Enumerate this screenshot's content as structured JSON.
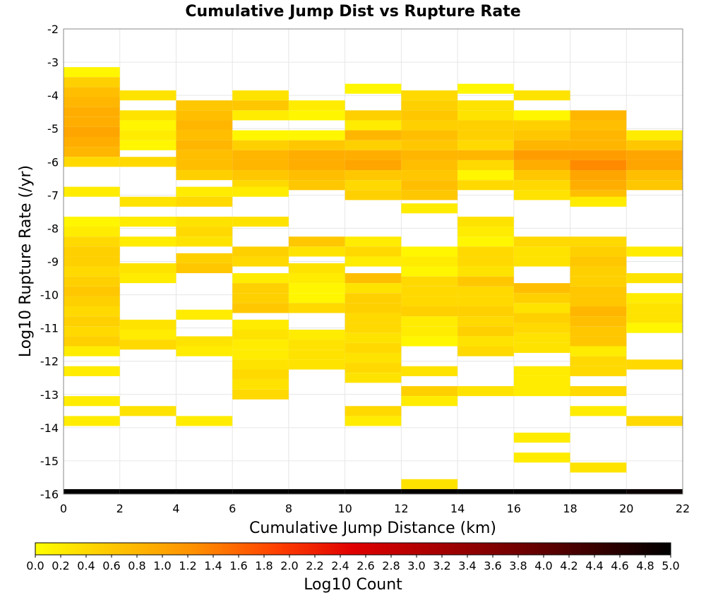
{
  "chart_data": {
    "type": "heatmap",
    "title": "Cumulative Jump Dist vs Rupture Rate",
    "xlabel": "Cumulative Jump Distance (km)",
    "ylabel": "Log10 Rupture Rate (/yr)",
    "xlim": [
      0,
      22
    ],
    "ylim": [
      -16,
      -2
    ],
    "x_ticks": [
      "0",
      "2",
      "4",
      "6",
      "8",
      "10",
      "12",
      "14",
      "16",
      "18",
      "20",
      "22"
    ],
    "y_ticks": [
      "-2",
      "-3",
      "-4",
      "-5",
      "-6",
      "-7",
      "-8",
      "-9",
      "-10",
      "-11",
      "-12",
      "-13",
      "-14",
      "-15",
      "-16"
    ],
    "grid": true,
    "x_bin_width": 2,
    "y_bin_height": 0.3,
    "colorbar": {
      "label": "Log10 Count",
      "range": [
        0,
        5
      ],
      "ticks": [
        "0.0",
        "0.2",
        "0.4",
        "0.6",
        "0.8",
        "1.0",
        "1.2",
        "1.4",
        "1.6",
        "1.8",
        "2.0",
        "2.2",
        "2.4",
        "2.6",
        "2.8",
        "3.0",
        "3.2",
        "3.4",
        "3.6",
        "3.8",
        "4.0",
        "4.2",
        "4.4",
        "4.6",
        "4.8",
        "5.0"
      ],
      "colors": [
        "#ffff00",
        "#ffd000",
        "#ff9000",
        "#ff4000",
        "#e00000",
        "#a00000",
        "#600000",
        "#000000"
      ]
    },
    "cells": [
      [
        0,
        -3.3,
        0.1
      ],
      [
        0,
        -3.6,
        0.5
      ],
      [
        0,
        -3.9,
        0.7
      ],
      [
        0,
        -4.2,
        0.8
      ],
      [
        0,
        -4.5,
        0.9
      ],
      [
        0,
        -4.8,
        0.9
      ],
      [
        0,
        -5.1,
        1.0
      ],
      [
        0,
        -5.4,
        0.9
      ],
      [
        0,
        -5.7,
        0.8
      ],
      [
        0,
        -6.0,
        0.4
      ],
      [
        0,
        -6.9,
        0.2
      ],
      [
        0,
        -7.8,
        0.1
      ],
      [
        0,
        -8.1,
        0.2
      ],
      [
        0,
        -8.4,
        0.4
      ],
      [
        0,
        -8.7,
        0.5
      ],
      [
        0,
        -9.0,
        0.5
      ],
      [
        0,
        -9.3,
        0.4
      ],
      [
        0,
        -9.6,
        0.5
      ],
      [
        0,
        -9.9,
        0.6
      ],
      [
        0,
        -10.2,
        0.5
      ],
      [
        0,
        -10.5,
        0.4
      ],
      [
        0,
        -10.8,
        0.5
      ],
      [
        0,
        -11.1,
        0.4
      ],
      [
        0,
        -11.4,
        0.5
      ],
      [
        0,
        -11.7,
        0.2
      ],
      [
        0,
        -12.3,
        0.2
      ],
      [
        0,
        -13.2,
        0.2
      ],
      [
        0,
        -13.8,
        0.2
      ],
      [
        0,
        -16.0,
        5.0
      ],
      [
        2,
        -4.0,
        0.3
      ],
      [
        2,
        -4.6,
        0.3
      ],
      [
        2,
        -4.9,
        0.1
      ],
      [
        2,
        -5.2,
        0.2
      ],
      [
        2,
        -5.5,
        0.1
      ],
      [
        2,
        -6.0,
        0.4
      ],
      [
        2,
        -7.2,
        0.3
      ],
      [
        2,
        -7.8,
        0.2
      ],
      [
        2,
        -8.4,
        0.2
      ],
      [
        2,
        -9.2,
        0.3
      ],
      [
        2,
        -9.5,
        0.2
      ],
      [
        2,
        -10.9,
        0.3
      ],
      [
        2,
        -11.2,
        0.2
      ],
      [
        2,
        -11.5,
        0.4
      ],
      [
        2,
        -13.5,
        0.3
      ],
      [
        2,
        -16.0,
        5.0
      ],
      [
        4,
        -4.3,
        0.6
      ],
      [
        4,
        -4.6,
        0.7
      ],
      [
        4,
        -4.9,
        0.8
      ],
      [
        4,
        -5.2,
        0.7
      ],
      [
        4,
        -5.5,
        0.8
      ],
      [
        4,
        -5.8,
        0.7
      ],
      [
        4,
        -6.1,
        0.7
      ],
      [
        4,
        -6.4,
        0.5
      ],
      [
        4,
        -6.9,
        0.2
      ],
      [
        4,
        -7.2,
        0.4
      ],
      [
        4,
        -7.8,
        0.3
      ],
      [
        4,
        -8.1,
        0.4
      ],
      [
        4,
        -8.4,
        0.3
      ],
      [
        4,
        -8.9,
        0.5
      ],
      [
        4,
        -9.2,
        0.6
      ],
      [
        4,
        -10.6,
        0.2
      ],
      [
        4,
        -11.4,
        0.3
      ],
      [
        4,
        -11.7,
        0.2
      ],
      [
        4,
        -13.8,
        0.2
      ],
      [
        4,
        -16.0,
        5.0
      ],
      [
        6,
        -4.0,
        0.3
      ],
      [
        6,
        -4.3,
        0.6
      ],
      [
        6,
        -4.6,
        0.2
      ],
      [
        6,
        -5.2,
        0.1
      ],
      [
        6,
        -5.5,
        0.5
      ],
      [
        6,
        -5.8,
        0.8
      ],
      [
        6,
        -6.1,
        0.8
      ],
      [
        6,
        -6.4,
        0.6
      ],
      [
        6,
        -6.7,
        0.4
      ],
      [
        6,
        -6.9,
        0.2
      ],
      [
        6,
        -7.8,
        0.3
      ],
      [
        6,
        -8.7,
        0.5
      ],
      [
        6,
        -9.0,
        0.4
      ],
      [
        6,
        -9.5,
        0.2
      ],
      [
        6,
        -9.8,
        0.5
      ],
      [
        6,
        -10.1,
        0.5
      ],
      [
        6,
        -10.4,
        0.6
      ],
      [
        6,
        -10.9,
        0.2
      ],
      [
        6,
        -11.2,
        0.3
      ],
      [
        6,
        -11.5,
        0.2
      ],
      [
        6,
        -11.8,
        0.2
      ],
      [
        6,
        -12.1,
        0.3
      ],
      [
        6,
        -12.4,
        0.4
      ],
      [
        6,
        -12.7,
        0.3
      ],
      [
        6,
        -13.0,
        0.4
      ],
      [
        6,
        -16.0,
        5.0
      ],
      [
        8,
        -4.3,
        0.2
      ],
      [
        8,
        -4.6,
        0.1
      ],
      [
        8,
        -5.2,
        0.1
      ],
      [
        8,
        -5.5,
        0.6
      ],
      [
        8,
        -5.8,
        0.9
      ],
      [
        8,
        -6.1,
        0.9
      ],
      [
        8,
        -6.4,
        0.7
      ],
      [
        8,
        -6.7,
        0.6
      ],
      [
        8,
        -8.4,
        0.6
      ],
      [
        8,
        -8.7,
        0.3
      ],
      [
        8,
        -9.2,
        0.3
      ],
      [
        8,
        -9.5,
        0.2
      ],
      [
        8,
        -9.8,
        0.1
      ],
      [
        8,
        -10.1,
        0.1
      ],
      [
        8,
        -10.4,
        0.4
      ],
      [
        8,
        -11.2,
        0.2
      ],
      [
        8,
        -11.5,
        0.3
      ],
      [
        8,
        -11.8,
        0.3
      ],
      [
        8,
        -12.1,
        0.3
      ],
      [
        8,
        -16.0,
        5.0
      ],
      [
        10,
        -3.8,
        0.1
      ],
      [
        10,
        -4.6,
        0.5
      ],
      [
        10,
        -4.9,
        0.2
      ],
      [
        10,
        -5.2,
        0.8
      ],
      [
        10,
        -5.5,
        0.5
      ],
      [
        10,
        -5.8,
        0.9
      ],
      [
        10,
        -6.1,
        1.0
      ],
      [
        10,
        -6.4,
        0.6
      ],
      [
        10,
        -6.7,
        0.4
      ],
      [
        10,
        -7.0,
        0.5
      ],
      [
        10,
        -8.4,
        0.2
      ],
      [
        10,
        -8.7,
        0.4
      ],
      [
        10,
        -9.0,
        0.2
      ],
      [
        10,
        -9.5,
        0.7
      ],
      [
        10,
        -9.8,
        0.3
      ],
      [
        10,
        -10.1,
        0.5
      ],
      [
        10,
        -10.4,
        0.5
      ],
      [
        10,
        -10.7,
        0.4
      ],
      [
        10,
        -11.0,
        0.4
      ],
      [
        10,
        -11.3,
        0.3
      ],
      [
        10,
        -11.6,
        0.4
      ],
      [
        10,
        -11.9,
        0.3
      ],
      [
        10,
        -12.2,
        0.4
      ],
      [
        10,
        -12.5,
        0.3
      ],
      [
        10,
        -13.5,
        0.4
      ],
      [
        10,
        -13.8,
        0.2
      ],
      [
        10,
        -16.0,
        5.0
      ],
      [
        12,
        -4.0,
        0.4
      ],
      [
        12,
        -4.3,
        0.5
      ],
      [
        12,
        -4.6,
        0.6
      ],
      [
        12,
        -4.9,
        0.5
      ],
      [
        12,
        -5.2,
        0.7
      ],
      [
        12,
        -5.5,
        0.6
      ],
      [
        12,
        -5.8,
        0.8
      ],
      [
        12,
        -6.1,
        0.7
      ],
      [
        12,
        -6.4,
        0.6
      ],
      [
        12,
        -6.7,
        0.7
      ],
      [
        12,
        -7.0,
        0.6
      ],
      [
        12,
        -7.4,
        0.2
      ],
      [
        12,
        -8.7,
        0.1
      ],
      [
        12,
        -9.0,
        0.2
      ],
      [
        12,
        -9.3,
        0.1
      ],
      [
        12,
        -9.6,
        0.4
      ],
      [
        12,
        -9.9,
        0.4
      ],
      [
        12,
        -10.2,
        0.4
      ],
      [
        12,
        -10.5,
        0.5
      ],
      [
        12,
        -10.8,
        0.2
      ],
      [
        12,
        -11.1,
        0.2
      ],
      [
        12,
        -11.4,
        0.1
      ],
      [
        12,
        -12.3,
        0.3
      ],
      [
        12,
        -12.9,
        0.5
      ],
      [
        12,
        -13.2,
        0.2
      ],
      [
        12,
        -15.7,
        0.3
      ],
      [
        12,
        -16.0,
        5.0
      ],
      [
        14,
        -3.8,
        0.1
      ],
      [
        14,
        -4.3,
        0.3
      ],
      [
        14,
        -4.6,
        0.3
      ],
      [
        14,
        -4.9,
        0.5
      ],
      [
        14,
        -5.2,
        0.5
      ],
      [
        14,
        -5.5,
        0.4
      ],
      [
        14,
        -5.8,
        0.8
      ],
      [
        14,
        -6.1,
        0.4
      ],
      [
        14,
        -6.4,
        0.1
      ],
      [
        14,
        -6.7,
        0.4
      ],
      [
        14,
        -7.8,
        0.3
      ],
      [
        14,
        -8.1,
        0.2
      ],
      [
        14,
        -8.4,
        0.1
      ],
      [
        14,
        -8.7,
        0.4
      ],
      [
        14,
        -9.0,
        0.4
      ],
      [
        14,
        -9.3,
        0.3
      ],
      [
        14,
        -9.6,
        0.6
      ],
      [
        14,
        -9.9,
        0.4
      ],
      [
        14,
        -10.2,
        0.4
      ],
      [
        14,
        -10.5,
        0.5
      ],
      [
        14,
        -10.8,
        0.4
      ],
      [
        14,
        -11.1,
        0.5
      ],
      [
        14,
        -11.4,
        0.3
      ],
      [
        14,
        -11.7,
        0.4
      ],
      [
        14,
        -12.9,
        0.3
      ],
      [
        14,
        -16.0,
        5.0
      ],
      [
        16,
        -4.0,
        0.3
      ],
      [
        16,
        -4.6,
        0.1
      ],
      [
        16,
        -4.9,
        0.5
      ],
      [
        16,
        -5.2,
        0.6
      ],
      [
        16,
        -5.5,
        0.8
      ],
      [
        16,
        -5.8,
        1.1
      ],
      [
        16,
        -6.1,
        0.9
      ],
      [
        16,
        -6.4,
        0.6
      ],
      [
        16,
        -6.7,
        0.4
      ],
      [
        16,
        -7.0,
        0.3
      ],
      [
        16,
        -8.4,
        0.4
      ],
      [
        16,
        -8.7,
        0.3
      ],
      [
        16,
        -9.0,
        0.3
      ],
      [
        16,
        -9.8,
        0.7
      ],
      [
        16,
        -10.1,
        0.5
      ],
      [
        16,
        -10.4,
        0.3
      ],
      [
        16,
        -10.7,
        0.5
      ],
      [
        16,
        -11.0,
        0.4
      ],
      [
        16,
        -11.3,
        0.3
      ],
      [
        16,
        -11.6,
        0.3
      ],
      [
        16,
        -12.3,
        0.2
      ],
      [
        16,
        -12.6,
        0.2
      ],
      [
        16,
        -12.9,
        0.2
      ],
      [
        16,
        -14.3,
        0.2
      ],
      [
        16,
        -14.9,
        0.2
      ],
      [
        16,
        -16.0,
        5.0
      ],
      [
        18,
        -4.6,
        0.8
      ],
      [
        18,
        -4.9,
        0.7
      ],
      [
        18,
        -5.2,
        0.8
      ],
      [
        18,
        -5.5,
        0.8
      ],
      [
        18,
        -5.8,
        1.1
      ],
      [
        18,
        -6.1,
        1.3
      ],
      [
        18,
        -6.4,
        1.0
      ],
      [
        18,
        -6.7,
        0.9
      ],
      [
        18,
        -7.0,
        0.7
      ],
      [
        18,
        -7.2,
        0.2
      ],
      [
        18,
        -8.4,
        0.4
      ],
      [
        18,
        -8.7,
        0.5
      ],
      [
        18,
        -9.0,
        0.6
      ],
      [
        18,
        -9.3,
        0.5
      ],
      [
        18,
        -9.6,
        0.5
      ],
      [
        18,
        -9.9,
        0.6
      ],
      [
        18,
        -10.2,
        0.6
      ],
      [
        18,
        -10.5,
        0.8
      ],
      [
        18,
        -10.8,
        0.7
      ],
      [
        18,
        -11.1,
        0.6
      ],
      [
        18,
        -11.4,
        0.6
      ],
      [
        18,
        -11.7,
        0.2
      ],
      [
        18,
        -12.0,
        0.4
      ],
      [
        18,
        -12.3,
        0.4
      ],
      [
        18,
        -12.9,
        0.4
      ],
      [
        18,
        -13.5,
        0.2
      ],
      [
        18,
        -15.2,
        0.3
      ],
      [
        18,
        -16.0,
        5.0
      ],
      [
        20,
        -5.2,
        0.2
      ],
      [
        20,
        -5.5,
        0.6
      ],
      [
        20,
        -5.8,
        1.0
      ],
      [
        20,
        -6.1,
        1.0
      ],
      [
        20,
        -6.4,
        0.7
      ],
      [
        20,
        -6.7,
        0.6
      ],
      [
        20,
        -8.7,
        0.2
      ],
      [
        20,
        -9.5,
        0.3
      ],
      [
        20,
        -10.1,
        0.2
      ],
      [
        20,
        -10.4,
        0.3
      ],
      [
        20,
        -10.7,
        0.3
      ],
      [
        20,
        -11.0,
        0.1
      ],
      [
        20,
        -12.1,
        0.4
      ],
      [
        20,
        -13.8,
        0.4
      ],
      [
        20,
        -16.0,
        4.9
      ]
    ]
  }
}
